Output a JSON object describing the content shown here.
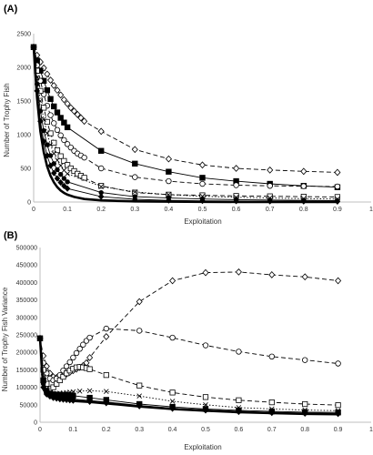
{
  "chart_data": [
    {
      "panel_label": "(A)",
      "type": "line",
      "xlabel": "Exploitation",
      "ylabel": "Number of Trophy Fish",
      "xlim": [
        0,
        1
      ],
      "ylim": [
        0,
        2500
      ],
      "xticks": [
        "0",
        "0.1",
        "0.2",
        "0.3",
        "0.4",
        "0.5",
        "0.6",
        "0.7",
        "0.8",
        "0.9",
        "1"
      ],
      "yticks": [
        "0",
        "500",
        "1000",
        "1500",
        "2000",
        "2500"
      ],
      "grid": false,
      "series": [
        {
          "marker": "diamond",
          "line": "dashed",
          "x": [
            0,
            0.01,
            0.02,
            0.03,
            0.04,
            0.05,
            0.06,
            0.07,
            0.08,
            0.09,
            0.1,
            0.11,
            0.12,
            0.13,
            0.14,
            0.15,
            0.2,
            0.3,
            0.4,
            0.5,
            0.6,
            0.7,
            0.8,
            0.9
          ],
          "y": [
            2300,
            2180,
            2080,
            1990,
            1900,
            1810,
            1730,
            1660,
            1590,
            1520,
            1460,
            1400,
            1350,
            1300,
            1250,
            1200,
            1050,
            780,
            640,
            550,
            500,
            475,
            455,
            440
          ]
        },
        {
          "marker": "filled-square",
          "line": "solid",
          "x": [
            0,
            0.01,
            0.02,
            0.03,
            0.04,
            0.05,
            0.06,
            0.07,
            0.08,
            0.09,
            0.1,
            0.2,
            0.3,
            0.4,
            0.5,
            0.6,
            0.7,
            0.8,
            0.9
          ],
          "y": [
            2300,
            2100,
            1950,
            1800,
            1660,
            1530,
            1420,
            1330,
            1250,
            1180,
            1110,
            760,
            570,
            450,
            360,
            310,
            270,
            240,
            220
          ]
        },
        {
          "marker": "circle",
          "line": "dashed",
          "x": [
            0,
            0.01,
            0.02,
            0.03,
            0.04,
            0.05,
            0.06,
            0.07,
            0.08,
            0.09,
            0.1,
            0.11,
            0.12,
            0.13,
            0.14,
            0.15,
            0.2,
            0.3,
            0.4,
            0.5,
            0.6,
            0.7,
            0.8,
            0.9
          ],
          "y": [
            2300,
            2030,
            1800,
            1600,
            1430,
            1290,
            1170,
            1070,
            990,
            920,
            860,
            810,
            760,
            720,
            690,
            660,
            500,
            370,
            310,
            270,
            250,
            240,
            235,
            230
          ]
        },
        {
          "marker": "square",
          "line": "dashed",
          "x": [
            0,
            0.01,
            0.02,
            0.03,
            0.04,
            0.05,
            0.06,
            0.07,
            0.08,
            0.09,
            0.1,
            0.11,
            0.12,
            0.13,
            0.14,
            0.15,
            0.2,
            0.3,
            0.4,
            0.5,
            0.6,
            0.7,
            0.8,
            0.9
          ],
          "y": [
            2300,
            1950,
            1650,
            1400,
            1190,
            1020,
            880,
            770,
            680,
            610,
            550,
            500,
            460,
            420,
            390,
            360,
            240,
            140,
            110,
            100,
            90,
            85,
            80,
            75
          ]
        },
        {
          "marker": "x",
          "line": "dotted",
          "x": [
            0,
            0.01,
            0.02,
            0.03,
            0.04,
            0.05,
            0.06,
            0.07,
            0.08,
            0.09,
            0.1,
            0.2,
            0.3,
            0.4,
            0.5,
            0.6,
            0.7,
            0.8,
            0.9
          ],
          "y": [
            2300,
            1850,
            1500,
            1230,
            1020,
            850,
            720,
            620,
            540,
            470,
            420,
            230,
            150,
            110,
            85,
            70,
            60,
            50,
            45
          ]
        },
        {
          "marker": "filled-circle",
          "line": "solid",
          "x": [
            0,
            0.01,
            0.02,
            0.03,
            0.04,
            0.05,
            0.06,
            0.07,
            0.08,
            0.09,
            0.1,
            0.2,
            0.3,
            0.4,
            0.5,
            0.6,
            0.7,
            0.8,
            0.9
          ],
          "y": [
            2300,
            1750,
            1350,
            1060,
            850,
            690,
            570,
            480,
            410,
            350,
            300,
            140,
            80,
            60,
            45,
            35,
            30,
            25,
            20
          ]
        },
        {
          "marker": "filled-diamond",
          "line": "solid",
          "x": [
            0,
            0.01,
            0.02,
            0.03,
            0.04,
            0.05,
            0.06,
            0.07,
            0.08,
            0.09,
            0.1,
            0.2,
            0.3,
            0.4,
            0.5,
            0.6,
            0.7,
            0.8,
            0.9
          ],
          "y": [
            2300,
            1650,
            1200,
            900,
            690,
            540,
            430,
            350,
            290,
            240,
            200,
            80,
            40,
            25,
            18,
            14,
            12,
            10,
            8
          ]
        },
        {
          "marker": "none",
          "line": "solid-thick",
          "x": [
            0,
            0.01,
            0.02,
            0.03,
            0.04,
            0.05,
            0.06,
            0.07,
            0.08,
            0.09,
            0.1,
            0.12,
            0.15,
            0.2,
            0.3,
            0.4,
            0.5,
            0.6,
            0.7,
            0.8,
            0.9
          ],
          "y": [
            2300,
            1550,
            1050,
            740,
            530,
            390,
            290,
            220,
            170,
            135,
            110,
            75,
            45,
            25,
            10,
            5,
            3,
            2,
            1,
            1,
            1
          ]
        }
      ]
    },
    {
      "panel_label": "(B)",
      "type": "line",
      "xlabel": "Exploitation",
      "ylabel": "Number of Trophy Fish Variance",
      "xlim": [
        0,
        1
      ],
      "ylim": [
        0,
        500000
      ],
      "xticks": [
        "0",
        "0.1",
        "0.2",
        "0.3",
        "0.4",
        "0.5",
        "0.6",
        "0.7",
        "0.8",
        "0.9",
        "1"
      ],
      "yticks": [
        "0",
        "50000",
        "100000",
        "150000",
        "200000",
        "250000",
        "300000",
        "350000",
        "400000",
        "450000",
        "500000"
      ],
      "grid": false,
      "series": [
        {
          "marker": "diamond",
          "line": "dashed",
          "x": [
            0,
            0.01,
            0.02,
            0.03,
            0.04,
            0.05,
            0.06,
            0.07,
            0.08,
            0.09,
            0.1,
            0.11,
            0.12,
            0.13,
            0.14,
            0.15,
            0.2,
            0.3,
            0.4,
            0.5,
            0.6,
            0.7,
            0.8,
            0.9
          ],
          "y": [
            240000,
            190000,
            160000,
            140000,
            130000,
            128000,
            130000,
            133000,
            138000,
            143000,
            148000,
            152000,
            157000,
            162000,
            170000,
            185000,
            245000,
            345000,
            405000,
            428000,
            430000,
            422000,
            416000,
            405000
          ]
        },
        {
          "marker": "circle",
          "line": "dashed",
          "x": [
            0,
            0.01,
            0.02,
            0.03,
            0.04,
            0.05,
            0.06,
            0.07,
            0.08,
            0.09,
            0.1,
            0.11,
            0.12,
            0.13,
            0.14,
            0.15,
            0.2,
            0.3,
            0.4,
            0.5,
            0.6,
            0.7,
            0.8,
            0.9
          ],
          "y": [
            240000,
            170000,
            140000,
            125000,
            120000,
            125000,
            135000,
            148000,
            160000,
            172000,
            185000,
            198000,
            210000,
            222000,
            233000,
            242000,
            268000,
            262000,
            242000,
            220000,
            202000,
            188000,
            178000,
            168000
          ]
        },
        {
          "marker": "square",
          "line": "dashed",
          "x": [
            0,
            0.01,
            0.02,
            0.03,
            0.04,
            0.05,
            0.06,
            0.07,
            0.08,
            0.09,
            0.1,
            0.11,
            0.12,
            0.13,
            0.14,
            0.15,
            0.2,
            0.3,
            0.4,
            0.5,
            0.6,
            0.7,
            0.8,
            0.9
          ],
          "y": [
            240000,
            150000,
            110000,
            95000,
            100000,
            110000,
            120000,
            130000,
            140000,
            148000,
            153000,
            157000,
            158000,
            157000,
            155000,
            152000,
            135000,
            105000,
            85000,
            72000,
            63000,
            57000,
            52000,
            49000
          ]
        },
        {
          "marker": "x",
          "line": "dotted",
          "x": [
            0,
            0.01,
            0.02,
            0.03,
            0.04,
            0.05,
            0.06,
            0.07,
            0.08,
            0.09,
            0.1,
            0.12,
            0.15,
            0.2,
            0.3,
            0.4,
            0.5,
            0.6,
            0.7,
            0.8,
            0.9
          ],
          "y": [
            240000,
            130000,
            95000,
            85000,
            82000,
            82000,
            83000,
            84000,
            85000,
            86000,
            87000,
            89000,
            90000,
            88000,
            75000,
            60000,
            50000,
            42000,
            38000,
            35000,
            33000
          ]
        },
        {
          "marker": "filled-square",
          "line": "solid",
          "x": [
            0,
            0.01,
            0.02,
            0.03,
            0.04,
            0.05,
            0.06,
            0.07,
            0.08,
            0.09,
            0.1,
            0.15,
            0.2,
            0.3,
            0.4,
            0.5,
            0.6,
            0.7,
            0.8,
            0.9
          ],
          "y": [
            240000,
            120000,
            90000,
            82000,
            80000,
            79000,
            79000,
            78000,
            78000,
            77000,
            76000,
            70000,
            64000,
            52000,
            44000,
            38000,
            34000,
            31000,
            29000,
            28000
          ]
        },
        {
          "marker": "filled-circle",
          "line": "solid",
          "x": [
            0,
            0.01,
            0.02,
            0.03,
            0.04,
            0.05,
            0.06,
            0.07,
            0.08,
            0.09,
            0.1,
            0.15,
            0.2,
            0.3,
            0.4,
            0.5,
            0.6,
            0.7,
            0.8,
            0.9
          ],
          "y": [
            240000,
            110000,
            85000,
            78000,
            74000,
            72000,
            70000,
            69000,
            68000,
            67000,
            66000,
            62000,
            58000,
            48000,
            40000,
            35000,
            31000,
            28000,
            26000,
            25000
          ]
        },
        {
          "marker": "filled-diamond",
          "line": "solid",
          "x": [
            0,
            0.01,
            0.02,
            0.03,
            0.04,
            0.05,
            0.06,
            0.07,
            0.08,
            0.09,
            0.1,
            0.15,
            0.2,
            0.3,
            0.4,
            0.5,
            0.6,
            0.7,
            0.8,
            0.9
          ],
          "y": [
            240000,
            100000,
            80000,
            74000,
            70000,
            68000,
            66000,
            65000,
            64000,
            63000,
            62000,
            59000,
            55000,
            46000,
            39000,
            34000,
            30000,
            27000,
            25000,
            24000
          ]
        },
        {
          "marker": "none",
          "line": "solid-thick",
          "x": [
            0,
            0.01,
            0.02,
            0.03,
            0.04,
            0.05,
            0.06,
            0.07,
            0.08,
            0.09,
            0.1,
            0.15,
            0.2,
            0.3,
            0.4,
            0.5,
            0.6,
            0.7,
            0.8,
            0.9
          ],
          "y": [
            240000,
            95000,
            78000,
            72000,
            69000,
            67000,
            65000,
            64000,
            63000,
            62000,
            61000,
            58000,
            54000,
            45000,
            38000,
            33000,
            29000,
            26000,
            24000,
            23000
          ]
        }
      ]
    }
  ]
}
